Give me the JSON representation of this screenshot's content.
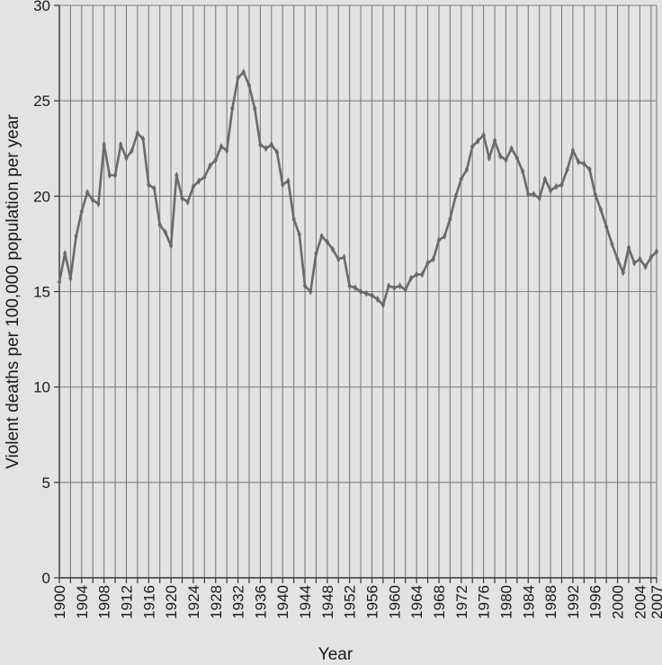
{
  "chart_data": {
    "type": "line",
    "title": "",
    "xlabel": "Year",
    "ylabel": "Violent deaths per 100,000 population per year",
    "xlim": [
      1900,
      2007
    ],
    "ylim": [
      0,
      30
    ],
    "grid": true,
    "legend": "none",
    "x_tick_labels": [
      "1900",
      "1904",
      "1908",
      "1912",
      "1916",
      "1920",
      "1924",
      "1928",
      "1932",
      "1936",
      "1940",
      "1944",
      "1948",
      "1952",
      "1956",
      "1960",
      "1964",
      "1968",
      "1972",
      "1976",
      "1980",
      "1984",
      "1988",
      "1992",
      "1996",
      "2000",
      "2004",
      "2007"
    ],
    "y_tick_labels": [
      "0",
      "5",
      "10",
      "15",
      "20",
      "25",
      "30"
    ],
    "colors": {
      "line": "#6a6a6a",
      "grid": "#7d7d7d",
      "background": "#e3e3e3",
      "text": "#1a1a1a"
    },
    "series": [
      {
        "x": [
          1900,
          1901,
          1902,
          1903,
          1904,
          1905,
          1906,
          1907,
          1908,
          1909,
          1910,
          1911,
          1912,
          1913,
          1914,
          1915,
          1916,
          1917,
          1918,
          1919,
          1920,
          1921,
          1922,
          1923,
          1924,
          1925,
          1926,
          1927,
          1928,
          1929,
          1930,
          1931,
          1932,
          1933,
          1934,
          1935,
          1936,
          1937,
          1938,
          1939,
          1940,
          1941,
          1942,
          1943,
          1944,
          1945,
          1946,
          1947,
          1948,
          1949,
          1950,
          1951,
          1952,
          1953,
          1954,
          1955,
          1956,
          1957,
          1958,
          1959,
          1960,
          1961,
          1962,
          1963,
          1964,
          1965,
          1966,
          1967,
          1968,
          1969,
          1970,
          1971,
          1972,
          1973,
          1974,
          1975,
          1976,
          1977,
          1978,
          1979,
          1980,
          1981,
          1982,
          1983,
          1984,
          1985,
          1986,
          1987,
          1988,
          1989,
          1990,
          1991,
          1992,
          1993,
          1994,
          1995,
          1996,
          1997,
          1998,
          1999,
          2000,
          2001,
          2002,
          2003,
          2004,
          2005,
          2006,
          2007
        ],
        "values": [
          15.5,
          17.0,
          15.7,
          17.9,
          19.2,
          20.2,
          19.8,
          19.6,
          22.7,
          21.1,
          21.1,
          22.7,
          22.0,
          22.4,
          23.3,
          23.0,
          20.6,
          20.4,
          18.5,
          18.1,
          17.4,
          21.1,
          19.9,
          19.7,
          20.5,
          20.8,
          21.0,
          21.6,
          21.9,
          22.6,
          22.4,
          24.6,
          26.2,
          26.5,
          25.8,
          24.6,
          22.7,
          22.5,
          22.7,
          22.3,
          20.6,
          20.8,
          18.8,
          18.0,
          15.3,
          15.0,
          17.0,
          17.9,
          17.6,
          17.2,
          16.7,
          16.8,
          15.3,
          15.2,
          15.0,
          14.9,
          14.8,
          14.6,
          14.3,
          15.3,
          15.2,
          15.3,
          15.1,
          15.7,
          15.9,
          15.9,
          16.5,
          16.7,
          17.7,
          17.9,
          18.8,
          20.0,
          20.9,
          21.4,
          22.6,
          22.9,
          23.2,
          22.0,
          22.9,
          22.1,
          21.9,
          22.5,
          22.0,
          21.3,
          20.1,
          20.1,
          19.9,
          20.9,
          20.3,
          20.5,
          20.6,
          21.4,
          22.4,
          21.8,
          21.7,
          21.4,
          20.1,
          19.3,
          18.4,
          17.5,
          16.7,
          16.0,
          17.3,
          16.5,
          16.7,
          16.3,
          16.8,
          17.1
        ]
      }
    ]
  }
}
